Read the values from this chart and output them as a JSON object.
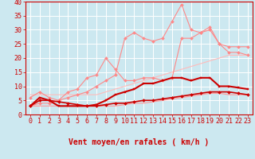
{
  "title": "",
  "xlabel": "Vent moyen/en rafales ( km/h )",
  "ylabel": "",
  "xlim": [
    -0.5,
    23.5
  ],
  "ylim": [
    0,
    40
  ],
  "xticks": [
    0,
    1,
    2,
    3,
    4,
    5,
    6,
    7,
    8,
    9,
    10,
    11,
    12,
    13,
    14,
    15,
    16,
    17,
    18,
    19,
    20,
    21,
    22,
    23
  ],
  "yticks": [
    0,
    5,
    10,
    15,
    20,
    25,
    30,
    35,
    40
  ],
  "bg_color": "#cce8f0",
  "grid_color": "#ffffff",
  "lines": [
    {
      "x": [
        0,
        1,
        2,
        3,
        4,
        5,
        6,
        7,
        8,
        9,
        10,
        11,
        12,
        13,
        14,
        15,
        16,
        17,
        18,
        19,
        20,
        21,
        22,
        23
      ],
      "y": [
        3,
        3,
        3,
        3,
        3,
        3,
        3,
        3,
        3,
        3,
        3.5,
        4,
        4,
        4.5,
        5,
        5.5,
        6,
        6.5,
        7,
        7.5,
        7.5,
        7,
        7,
        7
      ],
      "color": "#ff9999",
      "lw": 0.8,
      "marker": null,
      "zorder": 2
    },
    {
      "x": [
        0,
        1,
        2,
        3,
        4,
        5,
        6,
        7,
        8,
        9,
        10,
        11,
        12,
        13,
        14,
        15,
        16,
        17,
        18,
        19,
        20,
        21,
        22,
        23
      ],
      "y": [
        7,
        7,
        7,
        7,
        7,
        7,
        7,
        7,
        8,
        9,
        10,
        11,
        12,
        13,
        14,
        15,
        16,
        17,
        18,
        19,
        20,
        21,
        21,
        21
      ],
      "color": "#ffbbbb",
      "lw": 0.8,
      "marker": null,
      "zorder": 2
    },
    {
      "x": [
        0,
        1,
        2,
        3,
        4,
        5,
        6,
        7,
        8,
        9,
        10,
        11,
        12,
        13,
        14,
        15,
        16,
        17,
        18,
        19,
        20,
        21,
        22,
        23
      ],
      "y": [
        3,
        5,
        5,
        4.5,
        4,
        3.5,
        3,
        3,
        3.5,
        4,
        4,
        4.5,
        5,
        5,
        5.5,
        6,
        6.5,
        7,
        7.5,
        8,
        8,
        8,
        7.5,
        7
      ],
      "color": "#cc0000",
      "lw": 1.2,
      "marker": "D",
      "markersize": 2.0,
      "zorder": 4
    },
    {
      "x": [
        0,
        1,
        2,
        3,
        4,
        5,
        6,
        7,
        8,
        9,
        10,
        11,
        12,
        13,
        14,
        15,
        16,
        17,
        18,
        19,
        20,
        21,
        22,
        23
      ],
      "y": [
        3,
        6,
        5,
        3,
        3,
        3,
        3,
        3.5,
        5,
        7,
        8,
        9,
        11,
        11,
        12,
        13,
        13,
        12,
        13,
        13,
        10,
        10,
        9.5,
        9
      ],
      "color": "#cc0000",
      "lw": 1.5,
      "marker": "s",
      "markersize": 2.0,
      "zorder": 4
    },
    {
      "x": [
        0,
        1,
        2,
        3,
        4,
        5,
        6,
        7,
        8,
        9,
        10,
        11,
        12,
        13,
        14,
        15,
        16,
        17,
        18,
        19,
        20,
        21,
        22,
        23
      ],
      "y": [
        6,
        8,
        6,
        5,
        8,
        9,
        13,
        14,
        20,
        16,
        12,
        12,
        13,
        13,
        12,
        13,
        27,
        27,
        29,
        30,
        25,
        24,
        24,
        24
      ],
      "color": "#ff8888",
      "lw": 0.8,
      "marker": "D",
      "markersize": 2.0,
      "zorder": 3
    },
    {
      "x": [
        0,
        1,
        2,
        3,
        4,
        5,
        6,
        7,
        8,
        9,
        10,
        11,
        12,
        13,
        14,
        15,
        16,
        17,
        18,
        19,
        20,
        21,
        22,
        23
      ],
      "y": [
        3,
        4,
        4,
        5,
        6,
        7,
        8,
        10,
        12,
        14,
        27,
        29,
        27,
        26,
        27,
        33,
        39,
        30,
        29,
        31,
        25,
        22,
        22,
        21
      ],
      "color": "#ff8888",
      "lw": 0.8,
      "marker": "D",
      "markersize": 2.0,
      "zorder": 3
    }
  ],
  "arrow_color": "#cc0000",
  "xlabel_color": "#cc0000",
  "xlabel_fontsize": 7,
  "tick_fontsize": 6,
  "tick_color": "#cc0000",
  "arrow_angles": [
    225,
    225,
    225,
    225,
    225,
    225,
    200,
    200,
    200,
    200,
    200,
    200,
    200,
    200,
    215,
    215,
    270,
    225,
    225,
    225,
    225,
    225,
    225,
    225
  ]
}
